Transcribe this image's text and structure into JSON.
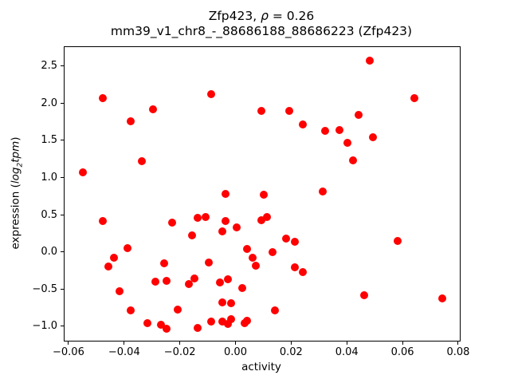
{
  "figure": {
    "title": {
      "pre": "Zfp423, ",
      "rho": "ρ",
      "post": " = 0.26"
    },
    "subtitle": "mm39_v1_chr8_-_88686188_88686223 (Zfp423)",
    "xlabel": "activity",
    "ylabel": {
      "prefix": "expression (",
      "math_log": "log",
      "math_sub": "2",
      "math_var": "tpm",
      "suffix": ")"
    }
  },
  "chart_data": {
    "type": "scatter",
    "title": "Zfp423, ρ = 0.26",
    "subtitle": "mm39_v1_chr8_-_88686188_88686223 (Zfp423)",
    "rho": 0.26,
    "xlabel": "activity",
    "ylabel": "expression (log2 tpm)",
    "marker_color": "#ff0000",
    "marker_diameter_px": 10,
    "grid": false,
    "legend": false,
    "xlim": [
      -0.0617,
      0.0803
    ],
    "ylim": [
      -1.183,
      2.763
    ],
    "x_ticks": [
      {
        "value": -0.06,
        "label": "−0.06"
      },
      {
        "value": -0.04,
        "label": "−0.04"
      },
      {
        "value": -0.02,
        "label": "−0.02"
      },
      {
        "value": 0.0,
        "label": "0.00"
      },
      {
        "value": 0.02,
        "label": "0.02"
      },
      {
        "value": 0.04,
        "label": "0.04"
      },
      {
        "value": 0.06,
        "label": "0.06"
      },
      {
        "value": 0.08,
        "label": "0.08"
      }
    ],
    "y_ticks": [
      {
        "value": 2.5,
        "label": "2.5"
      },
      {
        "value": 2.0,
        "label": "2.0"
      },
      {
        "value": 1.5,
        "label": "1.5"
      },
      {
        "value": 1.0,
        "label": "1.0"
      },
      {
        "value": 0.5,
        "label": "0.5"
      },
      {
        "value": 0.0,
        "label": "0.0"
      },
      {
        "value": -0.5,
        "label": "−0.5"
      },
      {
        "value": -1.0,
        "label": "−1.0"
      }
    ],
    "points": [
      [
        -0.048,
        2.08
      ],
      [
        -0.03,
        1.93
      ],
      [
        -0.038,
        1.77
      ],
      [
        -0.009,
        2.13
      ],
      [
        0.009,
        1.9
      ],
      [
        -0.034,
        1.23
      ],
      [
        -0.055,
        1.08
      ],
      [
        -0.004,
        0.79
      ],
      [
        0.048,
        2.58
      ],
      [
        0.064,
        2.08
      ],
      [
        0.019,
        1.9
      ],
      [
        0.024,
        1.72
      ],
      [
        0.032,
        1.64
      ],
      [
        0.037,
        1.65
      ],
      [
        0.044,
        1.85
      ],
      [
        0.04,
        1.48
      ],
      [
        0.049,
        1.55
      ],
      [
        0.042,
        1.24
      ],
      [
        0.031,
        0.82
      ],
      [
        -0.048,
        0.43
      ],
      [
        -0.023,
        0.4
      ],
      [
        -0.014,
        0.47
      ],
      [
        -0.011,
        0.48
      ],
      [
        -0.004,
        0.43
      ],
      [
        0.0,
        0.34
      ],
      [
        -0.005,
        0.29
      ],
      [
        -0.016,
        0.23
      ],
      [
        -0.039,
        0.06
      ],
      [
        -0.044,
        -0.07
      ],
      [
        -0.046,
        -0.19
      ],
      [
        -0.026,
        -0.14
      ],
      [
        0.009,
        0.44
      ],
      [
        0.011,
        0.48
      ],
      [
        0.018,
        0.19
      ],
      [
        0.021,
        0.15
      ],
      [
        0.004,
        0.05
      ],
      [
        0.013,
        0.01
      ],
      [
        0.006,
        -0.07
      ],
      [
        0.007,
        -0.18
      ],
      [
        -0.01,
        -0.13
      ],
      [
        0.058,
        0.16
      ],
      [
        0.01,
        0.78
      ],
      [
        -0.042,
        -0.52
      ],
      [
        -0.029,
        -0.39
      ],
      [
        -0.025,
        -0.38
      ],
      [
        -0.017,
        -0.42
      ],
      [
        -0.015,
        -0.35
      ],
      [
        0.021,
        -0.2
      ],
      [
        0.024,
        -0.26
      ],
      [
        -0.006,
        -0.4
      ],
      [
        -0.003,
        -0.36
      ],
      [
        0.002,
        -0.47
      ],
      [
        -0.005,
        -0.67
      ],
      [
        -0.002,
        -0.68
      ],
      [
        0.014,
        -0.78
      ],
      [
        -0.009,
        -0.93
      ],
      [
        -0.005,
        -0.93
      ],
      [
        -0.002,
        -0.89
      ],
      [
        -0.003,
        -0.96
      ],
      [
        0.003,
        -0.95
      ],
      [
        0.004,
        -0.91
      ],
      [
        -0.038,
        -0.78
      ],
      [
        -0.032,
        -0.95
      ],
      [
        -0.027,
        -0.97
      ],
      [
        -0.025,
        -1.02
      ],
      [
        -0.021,
        -0.77
      ],
      [
        -0.014,
        -1.01
      ],
      [
        0.046,
        -0.57
      ],
      [
        0.074,
        -0.61
      ]
    ]
  }
}
